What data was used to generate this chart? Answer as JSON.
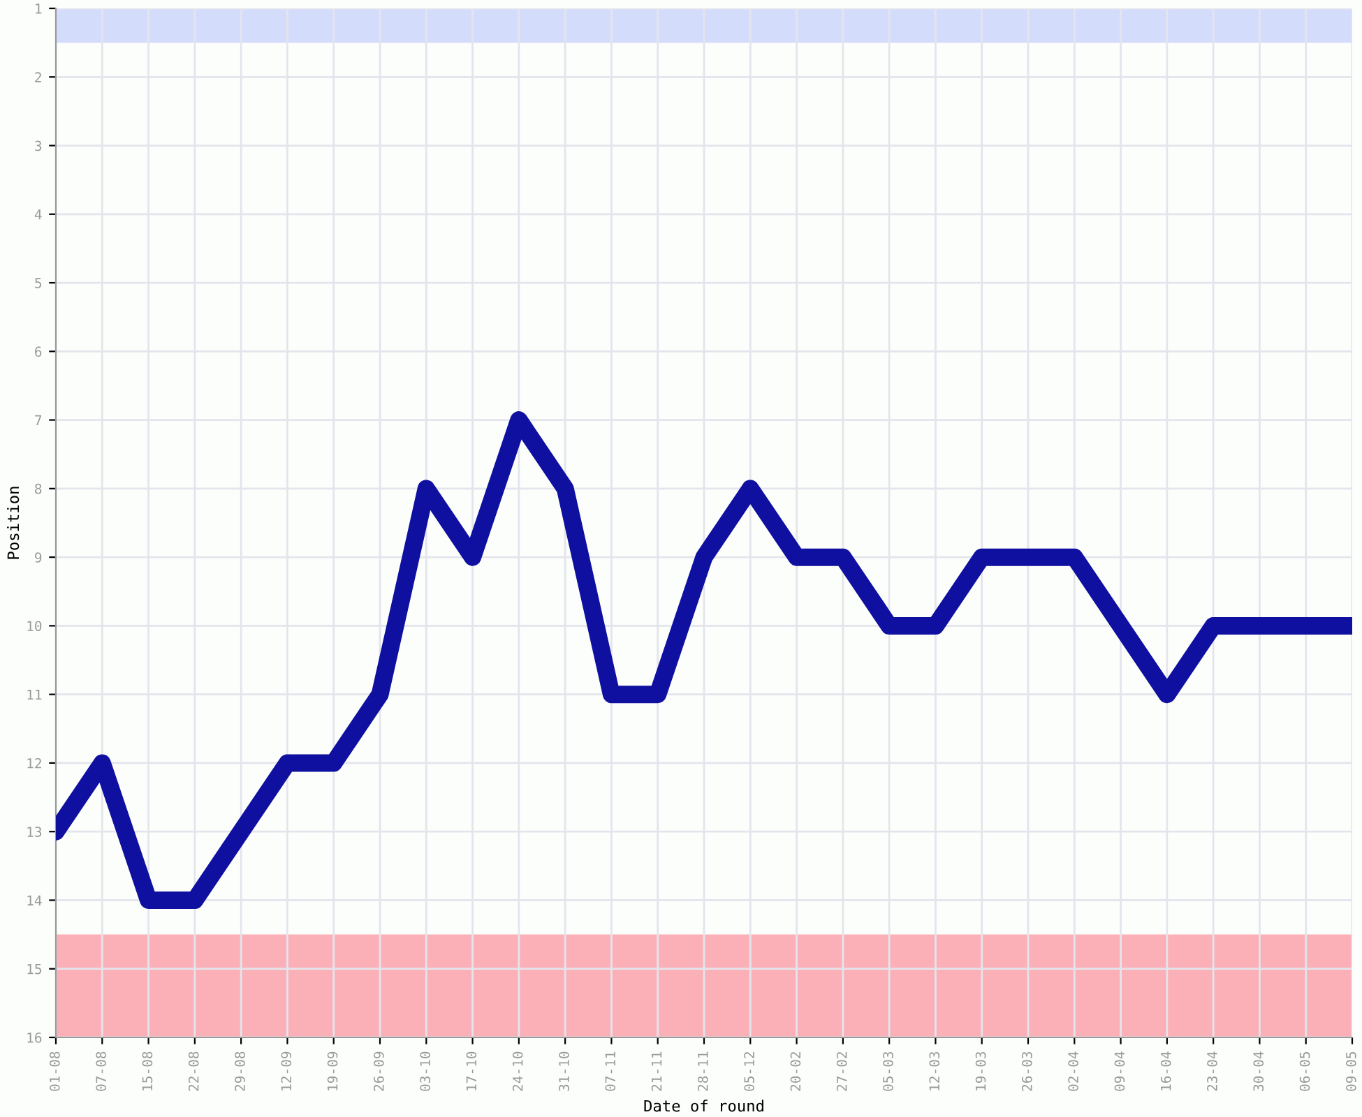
{
  "chart_data": {
    "type": "line",
    "xlabel": "Date of round",
    "ylabel": "Position",
    "categories": [
      "01-08",
      "07-08",
      "15-08",
      "22-08",
      "29-08",
      "12-09",
      "19-09",
      "26-09",
      "03-10",
      "17-10",
      "24-10",
      "31-10",
      "07-11",
      "21-11",
      "28-11",
      "05-12",
      "20-02",
      "27-02",
      "05-03",
      "12-03",
      "19-03",
      "26-03",
      "02-04",
      "09-04",
      "16-04",
      "23-04",
      "30-04",
      "06-05",
      "09-05"
    ],
    "series": [
      {
        "color": "#1010a0",
        "values": [
          13,
          12,
          14,
          14,
          13,
          12,
          12,
          11,
          8,
          9,
          7,
          8,
          11,
          11,
          9,
          8,
          9,
          9,
          10,
          10,
          9,
          9,
          9,
          10,
          11,
          10,
          10,
          10,
          10
        ]
      }
    ],
    "ylim": [
      16,
      1
    ],
    "yticks": [
      1,
      2,
      3,
      4,
      5,
      6,
      7,
      8,
      9,
      10,
      11,
      12,
      13,
      14,
      15,
      16
    ],
    "bands": [
      {
        "axis": "y",
        "from": 1,
        "to": 1.5,
        "color": "#d4dcfc"
      },
      {
        "axis": "y",
        "from": 14.5,
        "to": 16,
        "color": "#fbb0b8"
      }
    ],
    "grid": true,
    "line_style": "solid"
  }
}
